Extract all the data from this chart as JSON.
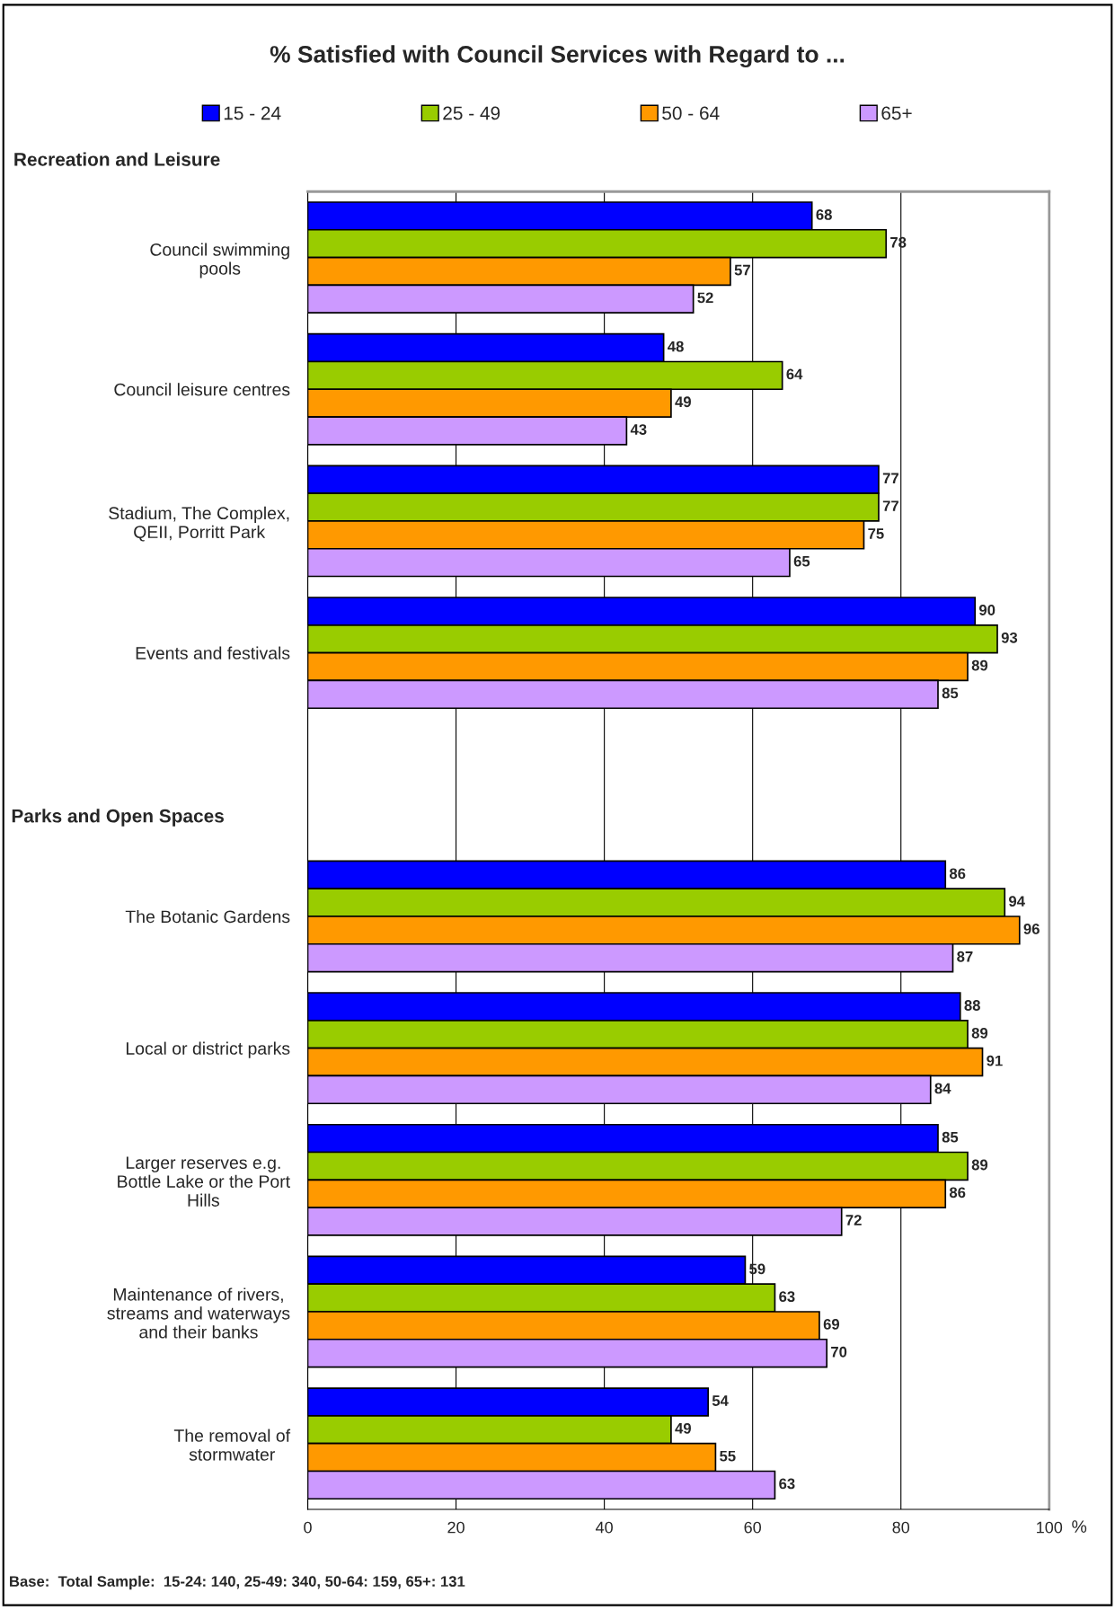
{
  "chart_data": {
    "type": "bar",
    "orientation": "horizontal",
    "title": "% Satisfied with Council Services with Regard to ...",
    "xlabel": "%",
    "categories": [
      "Council swimming\npools",
      "Council leisure centres",
      "Stadium, The Complex,\nQEII, Porritt Park",
      "Events and festivals",
      null,
      "The Botanic Gardens",
      "Local or district parks",
      "Larger reserves e.g.\nBottle Lake or the Port\nHills",
      "Maintenance of rivers,\nstreams and waterways\nand their banks",
      "The removal of\nstormwater"
    ],
    "series": [
      {
        "name": "15 - 24",
        "color": "#0000ff",
        "values": [
          68,
          48,
          77,
          90,
          null,
          86,
          88,
          85,
          59,
          54
        ]
      },
      {
        "name": "25 - 49",
        "color": "#99cc00",
        "values": [
          78,
          64,
          77,
          93,
          null,
          94,
          89,
          89,
          63,
          49
        ]
      },
      {
        "name": "50 - 64",
        "color": "#ff9900",
        "values": [
          57,
          49,
          75,
          89,
          null,
          96,
          91,
          86,
          69,
          55
        ]
      },
      {
        "name": "65+",
        "color": "#cc99ff",
        "values": [
          52,
          43,
          65,
          85,
          null,
          87,
          84,
          72,
          70,
          63
        ]
      }
    ],
    "xlim": [
      0,
      100
    ],
    "xticks": [
      0,
      20,
      40,
      60,
      80,
      100
    ],
    "grid": "x",
    "legend": "top",
    "data_labels": true,
    "annotations": [
      "Recreation and Leisure",
      "Parks and Open Spaces",
      "Base:  Total Sample:  15-24: 140, 25-49: 340, 50-64: 159, 65+: 131"
    ]
  }
}
